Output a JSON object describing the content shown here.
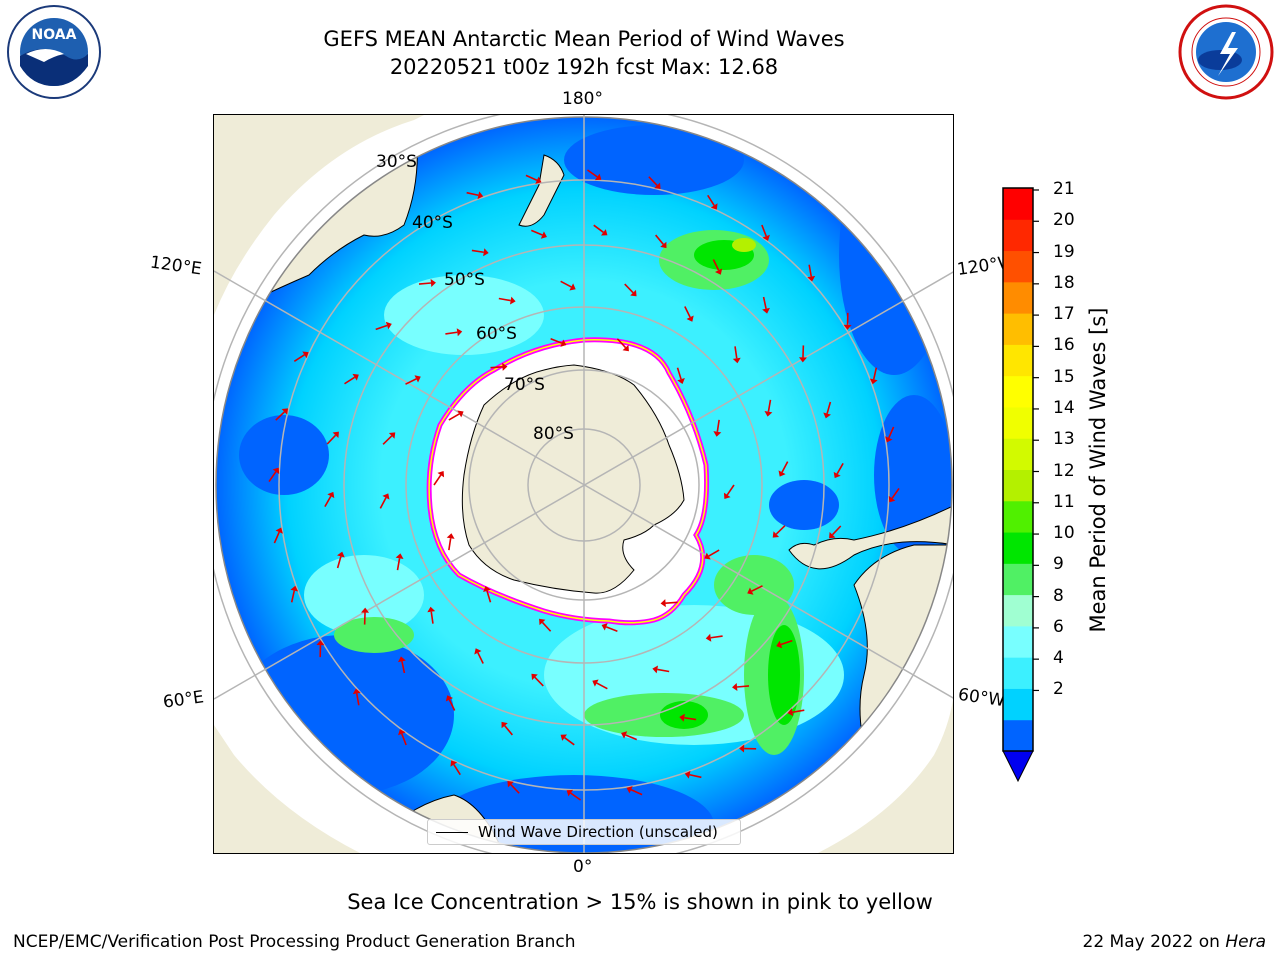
{
  "header": {
    "title_line1": "GEFS MEAN Antarctic Mean Period of Wind Waves",
    "title_line2": "20220521 t00z 192h fcst   Max: 12.68"
  },
  "logos": {
    "left": "NOAA",
    "right": "NATIONAL WEATHER SERVICE"
  },
  "map": {
    "projection": "south-polar-stereographic",
    "longitude_labels": {
      "top": "180°",
      "bottom": "0°",
      "upper_left": "120°E",
      "upper_right": "120°W",
      "lower_left": "60°E",
      "lower_right": "60°W"
    },
    "latitude_labels": [
      "30°S",
      "40°S",
      "50°S",
      "60°S",
      "70°S",
      "80°S"
    ],
    "legend_label": "Wind Wave Direction (unscaled)",
    "arrow_color": "#e00000",
    "land_color": "#efecd8",
    "sea_ice_edge_colors": [
      "#ff00ff",
      "#ffff00"
    ]
  },
  "colorbar": {
    "label": "Mean Period of Wind Waves [s]",
    "ticks": [
      "21",
      "20",
      "19",
      "18",
      "17",
      "16",
      "15",
      "14",
      "13",
      "12",
      "11",
      "10",
      "9",
      "8",
      "6",
      "4",
      "2"
    ],
    "levels": [
      2,
      4,
      6,
      8,
      9,
      10,
      11,
      12,
      13,
      14,
      15,
      16,
      17,
      18,
      19,
      20,
      21
    ],
    "colors": [
      "#0064ff",
      "#00d2ff",
      "#3cf0ff",
      "#78ffff",
      "#a0ffd2",
      "#50f064",
      "#00e600",
      "#50f000",
      "#b4f000",
      "#d2fa00",
      "#f0ff00",
      "#ffff00",
      "#ffe600",
      "#ffbe00",
      "#ff8c00",
      "#ff5000",
      "#ff2800",
      "#ff0000"
    ],
    "under_color": "#0000f0"
  },
  "subtitle": "Sea Ice Concentration > 15% is shown in pink to yellow",
  "footer": {
    "left": "NCEP/EMC/Verification Post Processing Product Generation Branch",
    "right_date": "22 May 2022 on",
    "right_host": "Hera"
  }
}
